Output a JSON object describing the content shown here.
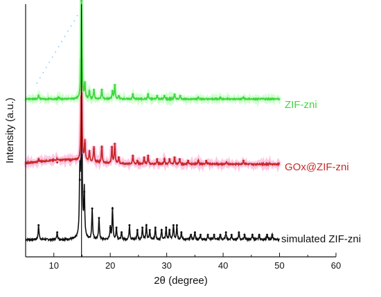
{
  "chart_data": {
    "type": "line",
    "xlabel": "2θ (degree)",
    "ylabel": "Intensity (a.u.)",
    "xlim": [
      5,
      60
    ],
    "xticks": [
      "10",
      "20",
      "30",
      "40",
      "50",
      "60"
    ],
    "yticks": "none",
    "grid": false,
    "series": [
      {
        "name": "simulated ZIF-zni",
        "color": "#111111",
        "offset": 0.0,
        "peaks": [
          [
            7.3,
            0.06
          ],
          [
            10.6,
            0.03
          ],
          [
            14.6,
            0.25
          ],
          [
            14.9,
            1.0
          ],
          [
            15.4,
            0.2
          ],
          [
            16.8,
            0.13
          ],
          [
            18.0,
            0.09
          ],
          [
            20.0,
            0.05
          ],
          [
            20.4,
            0.13
          ],
          [
            21.1,
            0.05
          ],
          [
            22.0,
            0.03
          ],
          [
            23.4,
            0.06
          ],
          [
            24.8,
            0.04
          ],
          [
            25.7,
            0.05
          ],
          [
            26.4,
            0.06
          ],
          [
            27.0,
            0.04
          ],
          [
            28.0,
            0.05
          ],
          [
            29.1,
            0.04
          ],
          [
            29.9,
            0.05
          ],
          [
            30.5,
            0.04
          ],
          [
            31.2,
            0.06
          ],
          [
            31.8,
            0.06
          ],
          [
            32.6,
            0.03
          ],
          [
            34.3,
            0.02
          ],
          [
            35.0,
            0.03
          ],
          [
            36.0,
            0.02
          ],
          [
            37.3,
            0.02
          ],
          [
            38.4,
            0.02
          ],
          [
            39.5,
            0.02
          ],
          [
            40.5,
            0.03
          ],
          [
            41.5,
            0.02
          ],
          [
            42.8,
            0.03
          ],
          [
            43.8,
            0.02
          ],
          [
            45.2,
            0.02
          ],
          [
            46.4,
            0.02
          ],
          [
            47.8,
            0.02
          ],
          [
            48.7,
            0.02
          ]
        ]
      },
      {
        "name": "GOx@ZIF-zni",
        "color": "#c62828",
        "offset": 0.3,
        "peaks": [
          [
            7.3,
            0.02
          ],
          [
            10.6,
            0.01
          ],
          [
            14.9,
            0.6
          ],
          [
            15.5,
            0.12
          ],
          [
            16.3,
            0.06
          ],
          [
            17.1,
            0.09
          ],
          [
            18.5,
            0.1
          ],
          [
            20.3,
            0.1
          ],
          [
            20.8,
            0.12
          ],
          [
            21.5,
            0.04
          ],
          [
            24.0,
            0.05
          ],
          [
            24.8,
            0.02
          ],
          [
            26.0,
            0.04
          ],
          [
            26.7,
            0.05
          ],
          [
            28.3,
            0.03
          ],
          [
            29.6,
            0.03
          ],
          [
            30.5,
            0.03
          ],
          [
            31.4,
            0.04
          ],
          [
            32.3,
            0.03
          ],
          [
            33.8,
            0.02
          ],
          [
            35.6,
            0.02
          ],
          [
            37.0,
            0.02
          ],
          [
            40.6,
            0.01
          ],
          [
            43.6,
            0.02
          ]
        ]
      },
      {
        "name": "ZIF-zni",
        "color": "#3fd63f",
        "offset": 0.62,
        "peaks": [
          [
            7.3,
            0.02
          ],
          [
            10.8,
            0.01
          ],
          [
            14.9,
            0.72
          ],
          [
            15.5,
            0.1
          ],
          [
            16.3,
            0.05
          ],
          [
            17.1,
            0.06
          ],
          [
            18.5,
            0.06
          ],
          [
            20.4,
            0.05
          ],
          [
            20.8,
            0.09
          ],
          [
            21.5,
            0.02
          ],
          [
            24.0,
            0.03
          ],
          [
            26.7,
            0.03
          ],
          [
            28.3,
            0.02
          ],
          [
            29.6,
            0.02
          ],
          [
            31.4,
            0.03
          ],
          [
            32.4,
            0.02
          ],
          [
            35.6,
            0.01
          ],
          [
            39.5,
            0.01
          ],
          [
            43.6,
            0.01
          ]
        ]
      }
    ],
    "annotation": "vertical reference line at 2θ ≈ 14.9"
  }
}
